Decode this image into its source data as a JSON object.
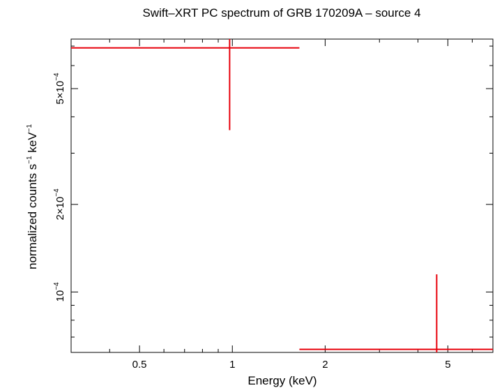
{
  "chart_data": {
    "type": "scatter",
    "title": "Swift–XRT PC spectrum of GRB 170209A – source 4",
    "xlabel": "Energy (keV)",
    "ylabel": {
      "text1": "normalized counts s",
      "sup1": "−1",
      "text2": " keV",
      "sup2": "−1"
    },
    "x_scale": "log",
    "y_scale": "log",
    "xlim": [
      0.3,
      7.0
    ],
    "ylim": [
      6.2e-05,
      0.00074
    ],
    "x_ticks": [
      {
        "value": 0.5,
        "label": "0.5"
      },
      {
        "value": 1,
        "label": "1"
      },
      {
        "value": 2,
        "label": "2"
      },
      {
        "value": 5,
        "label": "5"
      }
    ],
    "y_ticks": [
      {
        "value": 0.0001,
        "mantissa": "",
        "base": "10",
        "exp": "−4"
      },
      {
        "value": 0.0002,
        "mantissa": "2×",
        "base": "10",
        "exp": "−4"
      },
      {
        "value": 0.0005,
        "mantissa": "5×",
        "base": "10",
        "exp": "−4"
      }
    ],
    "grid": false,
    "color": "#e8000b",
    "points": [
      {
        "x": 0.98,
        "x_lo": 0.3,
        "x_hi": 1.65,
        "y": 0.00069,
        "y_lo": 0.00036,
        "y_hi": 0.00074
      },
      {
        "x": 4.6,
        "x_lo": 1.65,
        "x_hi": 7.0,
        "y": 6.35e-05,
        "y_lo": 6.2e-05,
        "y_hi": 0.000115
      }
    ]
  }
}
